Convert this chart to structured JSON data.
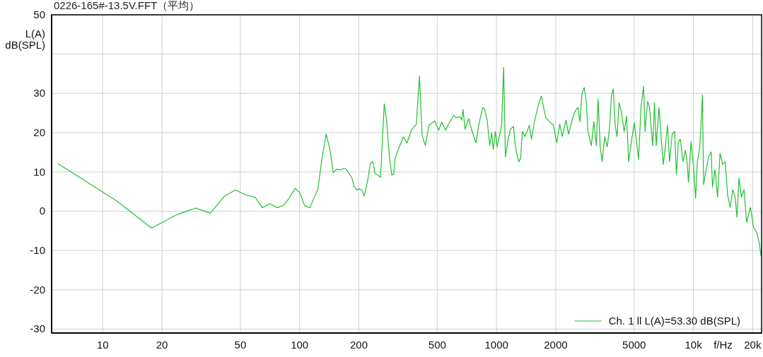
{
  "chart_data": {
    "type": "line",
    "title": "0226-165#-13.5V.FFT（平均）",
    "xlabel": "f/Hz",
    "ylabel": "L(A)\ndB(SPL)",
    "log": "x",
    "grid": true,
    "legend": "bottom right",
    "xlim": [
      5.5,
      22200
    ],
    "ylim": [
      -31,
      50
    ],
    "xticks": [
      10,
      20,
      50,
      100,
      200,
      500,
      1000,
      2000,
      5000,
      {
        "value": 10000,
        "label": "10k"
      },
      {
        "value": 20000,
        "label": "20k"
      }
    ],
    "yticks": [
      50,
      {
        "value": 40,
        "label": null
      },
      30,
      20,
      10,
      0,
      -10,
      -20,
      -30
    ],
    "x": [
      5.93,
      11.8,
      17.7,
      23.5,
      29.5,
      35.2,
      41.5,
      47.2,
      53,
      59.3,
      64.6,
      70.8,
      77,
      82.8,
      88.4,
      94.9,
      100,
      106,
      112.7,
      123.8,
      130,
      136.4,
      142.4,
      148.2,
      154.3,
      160.7,
      167,
      171.8,
      183.9,
      189.7,
      195.4,
      202,
      207.4,
      213.3,
      222,
      228.8,
      235.5,
      241.2,
      257.5,
      269,
      277,
      285.6,
      294,
      300,
      305.5,
      321,
      336,
      351,
      369,
      391.6,
      406,
      419,
      435,
      454,
      486,
      508,
      527,
      551,
      571,
      606,
      624,
      653,
      666,
      676,
      692,
      724,
      745,
      786,
      814,
      851,
      869,
      895,
      924,
      944,
      963,
      987,
      1007,
      1062,
      1087,
      1110,
      1144,
      1178,
      1221,
      1239,
      1268,
      1299,
      1326,
      1353,
      1393,
      1470,
      1504,
      1559,
      1630,
      1689,
      1729,
      1781,
      1861,
      1945,
      2021,
      2094,
      2158,
      2256,
      2322,
      2428,
      2502,
      2590,
      2653,
      2717,
      2790,
      2855,
      2915,
      3031,
      3119,
      3214,
      3281,
      3361,
      3439,
      3544,
      3651,
      3749,
      3836,
      3916,
      4011,
      4095,
      4194,
      4317,
      4447,
      4582,
      4689,
      4861,
      5008,
      5111,
      5267,
      5421,
      5585,
      5682,
      5853,
      5975,
      6213,
      6343,
      6475,
      6687,
      6866,
      7031,
      7197,
      7390,
      7569,
      7798,
      8027,
      8195,
      8393,
      8589,
      8850,
      9118,
      9309,
      9446,
      9723,
      10016,
      10260,
      10470,
      10780,
      11110,
      11270,
      11610,
      11950,
      12310,
      12500,
      12880,
      13260,
      13660,
      14070,
      14500,
      14920,
      15370,
      15840,
      16300,
      16640,
      17040,
      17560,
      18080,
      18620,
      19470,
      20220,
      20960,
      21590,
      22030
    ],
    "series": [
      {
        "name": "Ch. 1 ll L(A)=53.30 dB(SPL)",
        "color": "#22c032",
        "values": [
          12.1,
          2.6,
          -4.3,
          -1.0,
          0.8,
          -0.5,
          3.8,
          5.4,
          4.2,
          3.6,
          0.9,
          1.9,
          0.9,
          1.5,
          3.3,
          5.8,
          4.8,
          1.4,
          0.9,
          5.6,
          13.6,
          19.6,
          15.8,
          9.8,
          10.7,
          10.5,
          10.9,
          10.8,
          8.6,
          6.2,
          5.4,
          5.7,
          5.3,
          3.9,
          8.1,
          12.2,
          12.6,
          9.7,
          8.6,
          27.3,
          22.8,
          13.8,
          9.2,
          9.4,
          13.5,
          16.4,
          18.9,
          17.4,
          20.6,
          22.2,
          34.4,
          19.3,
          16.7,
          21.9,
          23.0,
          20.6,
          22.7,
          20.6,
          22.2,
          24.4,
          23.8,
          24.1,
          23.2,
          25.9,
          20.9,
          23.6,
          20.9,
          17.4,
          22.2,
          26.4,
          26.0,
          23.5,
          16.7,
          20.0,
          15.8,
          20.3,
          16.4,
          21.9,
          36.6,
          13.8,
          18.3,
          20.9,
          21.6,
          17.7,
          14.5,
          12.6,
          13.5,
          20.3,
          19.0,
          21.9,
          18.3,
          22.8,
          27.0,
          29.3,
          26.7,
          23.8,
          22.8,
          21.9,
          17.4,
          22.2,
          19.0,
          23.2,
          19.6,
          23.5,
          25.4,
          26.4,
          22.8,
          29.9,
          31.5,
          28.0,
          20.3,
          16.7,
          22.8,
          16.7,
          28.6,
          16.4,
          12.6,
          19.0,
          16.4,
          21.2,
          29.3,
          31.2,
          21.6,
          19.0,
          27.6,
          25.1,
          20.3,
          24.1,
          12.6,
          18.3,
          22.5,
          19.0,
          13.2,
          26.7,
          31.8,
          20.3,
          28.0,
          26.7,
          16.7,
          27.6,
          16.7,
          26.4,
          18.3,
          11.9,
          16.4,
          21.9,
          12.6,
          19.6,
          20.3,
          9.4,
          17.7,
          18.3,
          12.6,
          15.5,
          11.9,
          7.4,
          17.7,
          11.3,
          3.3,
          12.6,
          16.1,
          29.6,
          6.8,
          10.7,
          13.8,
          15.1,
          6.2,
          10.7,
          3.6,
          14.8,
          11.9,
          12.6,
          4.2,
          1.0,
          5.5,
          3.6,
          -1.5,
          8.4,
          3.6,
          5.5,
          -2.8,
          1.0,
          -4.1,
          -5.4,
          -8.0,
          -11.3
        ]
      }
    ]
  }
}
